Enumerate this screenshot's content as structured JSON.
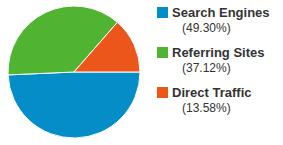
{
  "chart_data": {
    "type": "pie",
    "categories": [
      "Search Engines",
      "Referring Sites",
      "Direct Traffic"
    ],
    "values": [
      49.3,
      37.12,
      13.58
    ],
    "value_labels": [
      "(49.30%)",
      "(37.12%)",
      "(13.58%)"
    ],
    "colors": [
      "#058dc7",
      "#50b432",
      "#ed561b"
    ],
    "legend": "right"
  }
}
